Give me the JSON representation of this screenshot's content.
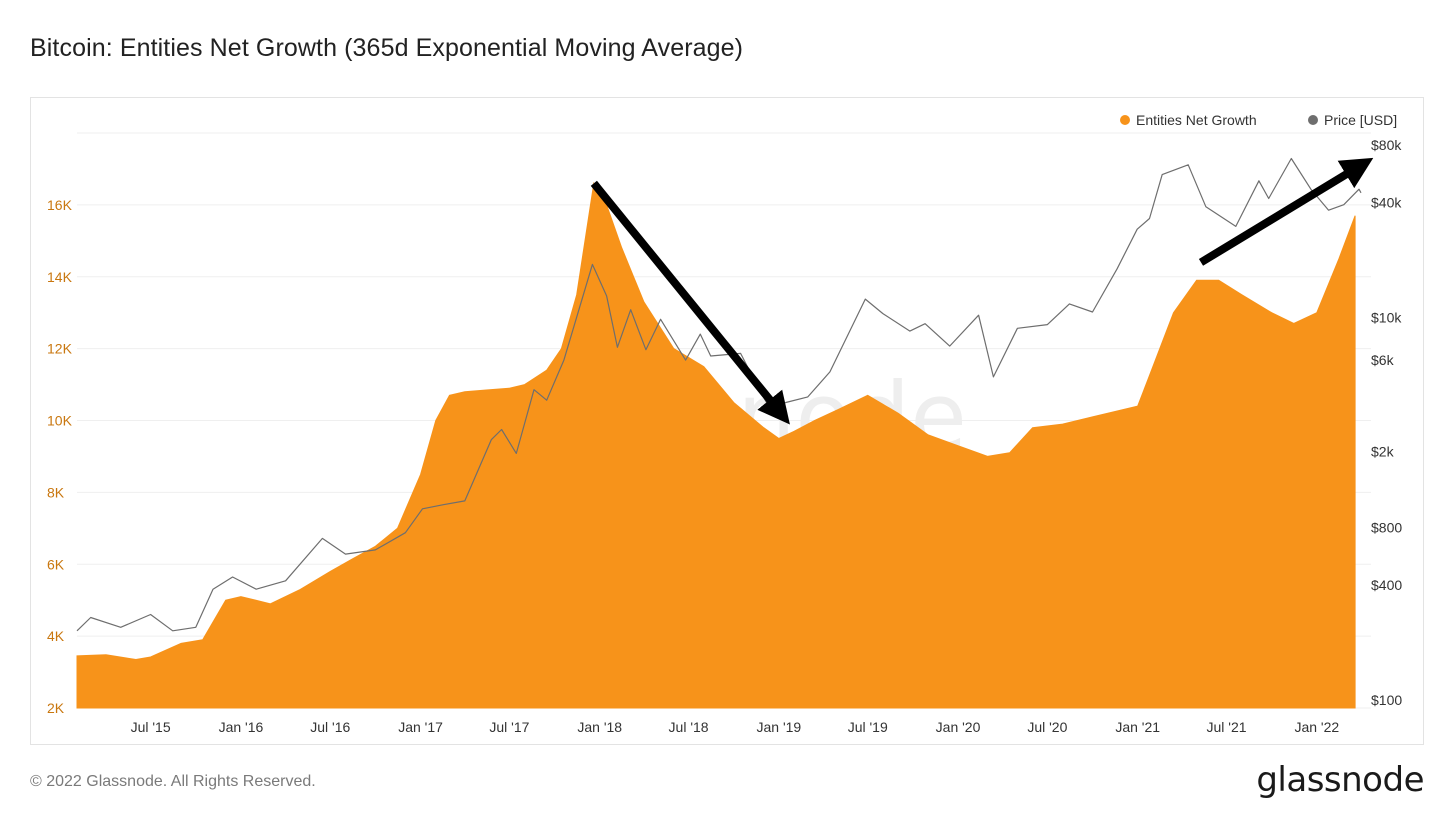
{
  "title": "Bitcoin: Entities Net Growth (365d Exponential Moving Average)",
  "footer": {
    "copyright": "© 2022 Glassnode. All Rights Reserved.",
    "brand": "glassnode"
  },
  "watermark": "glassnode",
  "colors": {
    "growth": "#f7931a",
    "price": "#6e6e6e",
    "arrow": "#000000",
    "left_axis_text": "#c9770f"
  },
  "chart_data": {
    "type": "area",
    "legend_position": "top-right",
    "grid": true,
    "x_axis": {
      "ticks": [
        "Jul '15",
        "Jan '16",
        "Jul '16",
        "Jan '17",
        "Jul '17",
        "Jan '18",
        "Jul '18",
        "Jan '19",
        "Jul '19",
        "Jan '20",
        "Jul '20",
        "Jan '21",
        "Jul '21",
        "Jan '22"
      ],
      "range": [
        "2015-02-01",
        "2022-04-01"
      ]
    },
    "y_left": {
      "ticks": [
        "2K",
        "4K",
        "6K",
        "8K",
        "10K",
        "12K",
        "14K",
        "16K"
      ],
      "range": [
        2000,
        18000
      ]
    },
    "y_right": {
      "scale": "log",
      "ticks": [
        "$100",
        "$400",
        "$800",
        "$2k",
        "$6k",
        "$10k",
        "$40k",
        "$80k"
      ],
      "tick_values": [
        100,
        400,
        800,
        2000,
        6000,
        10000,
        40000,
        80000
      ],
      "range": [
        100,
        80000
      ]
    },
    "series": [
      {
        "name": "Entities Net Growth",
        "axis": "left",
        "points": [
          [
            "2015-02-01",
            3450
          ],
          [
            "2015-04-01",
            3480
          ],
          [
            "2015-06-01",
            3350
          ],
          [
            "2015-07-01",
            3420
          ],
          [
            "2015-09-01",
            3800
          ],
          [
            "2015-10-15",
            3900
          ],
          [
            "2015-12-01",
            5000
          ],
          [
            "2016-01-01",
            5100
          ],
          [
            "2016-03-01",
            4900
          ],
          [
            "2016-05-01",
            5300
          ],
          [
            "2016-07-01",
            5800
          ],
          [
            "2016-08-15",
            6150
          ],
          [
            "2016-10-01",
            6500
          ],
          [
            "2016-11-15",
            7000
          ],
          [
            "2017-01-01",
            8500
          ],
          [
            "2017-02-01",
            10000
          ],
          [
            "2017-03-01",
            10700
          ],
          [
            "2017-04-01",
            10800
          ],
          [
            "2017-05-15",
            10850
          ],
          [
            "2017-07-01",
            10900
          ],
          [
            "2017-08-01",
            11000
          ],
          [
            "2017-09-15",
            11400
          ],
          [
            "2017-10-15",
            12000
          ],
          [
            "2017-11-15",
            13500
          ],
          [
            "2017-12-20",
            16600
          ],
          [
            "2018-01-15",
            16000
          ],
          [
            "2018-02-15",
            14800
          ],
          [
            "2018-04-01",
            13300
          ],
          [
            "2018-06-01",
            12000
          ],
          [
            "2018-08-01",
            11500
          ],
          [
            "2018-10-01",
            10500
          ],
          [
            "2018-12-01",
            9800
          ],
          [
            "2019-01-01",
            9500
          ],
          [
            "2019-02-01",
            9700
          ],
          [
            "2019-03-15",
            10000
          ],
          [
            "2019-05-01",
            10300
          ],
          [
            "2019-07-01",
            10700
          ],
          [
            "2019-09-01",
            10200
          ],
          [
            "2019-11-01",
            9600
          ],
          [
            "2020-01-01",
            9300
          ],
          [
            "2020-03-01",
            9000
          ],
          [
            "2020-04-15",
            9100
          ],
          [
            "2020-06-01",
            9800
          ],
          [
            "2020-08-01",
            9900
          ],
          [
            "2020-10-01",
            10100
          ],
          [
            "2020-12-01",
            10300
          ],
          [
            "2021-01-01",
            10400
          ],
          [
            "2021-02-01",
            11500
          ],
          [
            "2021-03-15",
            13000
          ],
          [
            "2021-05-01",
            13900
          ],
          [
            "2021-06-15",
            13900
          ],
          [
            "2021-08-01",
            13500
          ],
          [
            "2021-10-01",
            13000
          ],
          [
            "2021-11-15",
            12700
          ],
          [
            "2022-01-01",
            13000
          ],
          [
            "2022-02-15",
            14500
          ],
          [
            "2022-03-20",
            15700
          ]
        ]
      },
      {
        "name": "Price [USD]",
        "axis": "right",
        "points": [
          [
            "2015-02-01",
            230
          ],
          [
            "2015-03-01",
            270
          ],
          [
            "2015-05-01",
            240
          ],
          [
            "2015-07-01",
            280
          ],
          [
            "2015-08-15",
            230
          ],
          [
            "2015-10-01",
            240
          ],
          [
            "2015-11-05",
            380
          ],
          [
            "2015-12-15",
            440
          ],
          [
            "2016-02-01",
            380
          ],
          [
            "2016-04-01",
            420
          ],
          [
            "2016-06-15",
            700
          ],
          [
            "2016-08-01",
            580
          ],
          [
            "2016-10-01",
            610
          ],
          [
            "2016-12-01",
            750
          ],
          [
            "2017-01-05",
            1000
          ],
          [
            "2017-02-15",
            1050
          ],
          [
            "2017-04-01",
            1100
          ],
          [
            "2017-05-25",
            2300
          ],
          [
            "2017-06-15",
            2600
          ],
          [
            "2017-07-15",
            1950
          ],
          [
            "2017-08-20",
            4200
          ],
          [
            "2017-09-15",
            3700
          ],
          [
            "2017-10-20",
            6000
          ],
          [
            "2017-12-17",
            19000
          ],
          [
            "2018-01-15",
            13000
          ],
          [
            "2018-02-06",
            7000
          ],
          [
            "2018-03-05",
            11000
          ],
          [
            "2018-04-05",
            6800
          ],
          [
            "2018-05-05",
            9800
          ],
          [
            "2018-06-25",
            6000
          ],
          [
            "2018-07-25",
            8200
          ],
          [
            "2018-08-15",
            6300
          ],
          [
            "2018-10-15",
            6500
          ],
          [
            "2018-11-20",
            4300
          ],
          [
            "2018-12-15",
            3300
          ],
          [
            "2019-01-15",
            3600
          ],
          [
            "2019-03-01",
            3850
          ],
          [
            "2019-04-15",
            5200
          ],
          [
            "2019-06-26",
            12500
          ],
          [
            "2019-08-01",
            10500
          ],
          [
            "2019-09-25",
            8500
          ],
          [
            "2019-10-26",
            9300
          ],
          [
            "2019-12-15",
            7100
          ],
          [
            "2020-02-12",
            10300
          ],
          [
            "2020-03-13",
            4900
          ],
          [
            "2020-05-01",
            8800
          ],
          [
            "2020-07-01",
            9200
          ],
          [
            "2020-08-15",
            11800
          ],
          [
            "2020-10-01",
            10700
          ],
          [
            "2020-11-20",
            18000
          ],
          [
            "2020-12-31",
            29000
          ],
          [
            "2021-01-25",
            33000
          ],
          [
            "2021-02-20",
            56000
          ],
          [
            "2021-04-14",
            63000
          ],
          [
            "2021-05-20",
            38000
          ],
          [
            "2021-07-20",
            30000
          ],
          [
            "2021-09-05",
            52000
          ],
          [
            "2021-09-25",
            42000
          ],
          [
            "2021-11-10",
            68000
          ],
          [
            "2021-12-20",
            47000
          ],
          [
            "2022-01-25",
            36500
          ],
          [
            "2022-02-25",
            39000
          ],
          [
            "2022-03-28",
            47000
          ],
          [
            "2022-04-01",
            45000
          ]
        ]
      }
    ],
    "annotations": [
      {
        "type": "arrow",
        "from": [
          "2017-12-20",
          16600
        ],
        "to": [
          "2019-01-05",
          10200
        ]
      },
      {
        "type": "arrow",
        "from": [
          "2021-05-10",
          14400
        ],
        "to": [
          "2022-04-01",
          17100
        ]
      }
    ]
  }
}
